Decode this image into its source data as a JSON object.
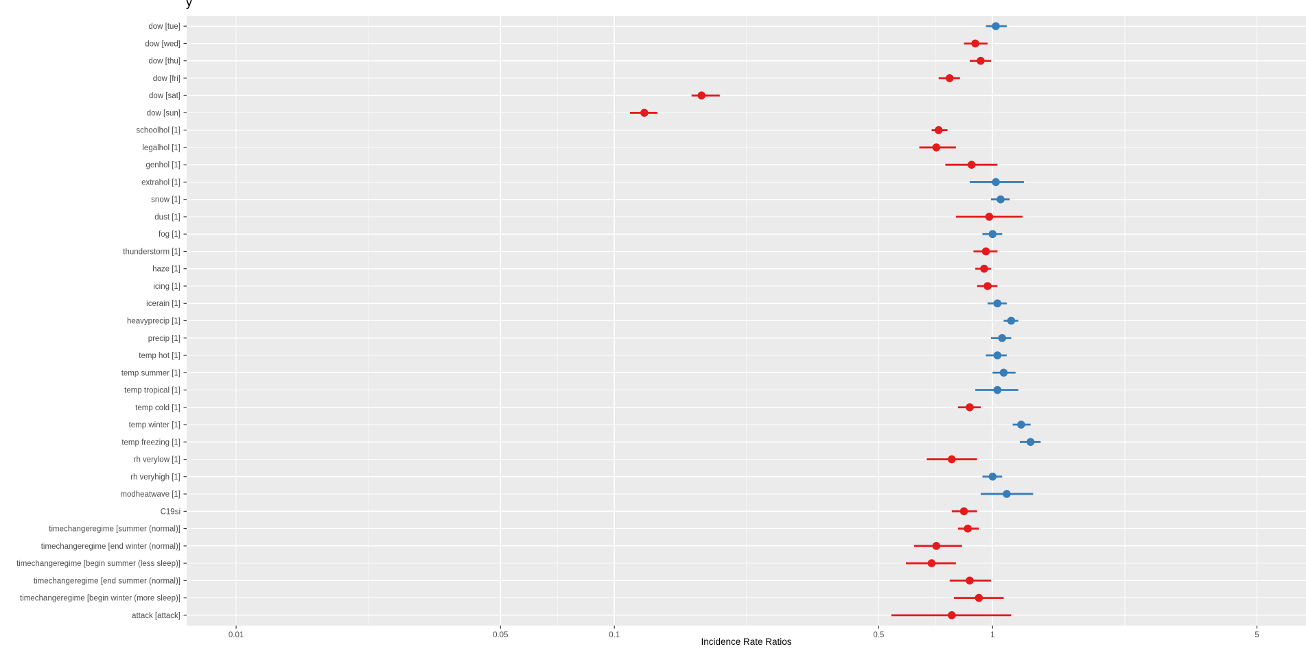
{
  "title": "y",
  "axis": {
    "x_label": "Incidence Rate Ratios",
    "y_label": ""
  },
  "colors": {
    "blue": "#377EB8",
    "red": "#E41A1C",
    "panel_background": "#EBEBEB",
    "gridline": "#FFFFFF",
    "axis_text": "#4D4D4D",
    "tick_mark": "#333333",
    "title_text": "#000000"
  },
  "chart_data": {
    "type": "scatter",
    "subtype": "forest-plot (point estimate with confidence interval)",
    "title": "y",
    "xlabel": "Incidence Rate Ratios",
    "ylabel": "",
    "legend": "none",
    "grid": "white major/minor gridlines on grey panel",
    "x_scale": "log10",
    "xlim": [
      0.0074,
      6.74
    ],
    "x_ticks": [
      0.01,
      0.05,
      0.1,
      0.5,
      1,
      5
    ],
    "x_tick_labels": [
      "0.01",
      "0.05",
      "0.1",
      "0.5",
      "1",
      "5"
    ],
    "x_minor_gridlines": [
      0.02236,
      0.07071,
      0.22361,
      0.70711,
      2.23607
    ],
    "point_color_rule": {
      "irr_ge_1": "blue",
      "irr_lt_1": "red"
    },
    "points": [
      {
        "label": "dow [tue]",
        "irr": 1.02,
        "ci": [
          0.96,
          1.09
        ],
        "color": "blue"
      },
      {
        "label": "dow [wed]",
        "irr": 0.9,
        "ci": [
          0.84,
          0.97
        ],
        "color": "red"
      },
      {
        "label": "dow [thu]",
        "irr": 0.93,
        "ci": [
          0.87,
          0.99
        ],
        "color": "red"
      },
      {
        "label": "dow [fri]",
        "irr": 0.77,
        "ci": [
          0.72,
          0.82
        ],
        "color": "red"
      },
      {
        "label": "dow [sat]",
        "irr": 0.17,
        "ci": [
          0.16,
          0.19
        ],
        "color": "red"
      },
      {
        "label": "dow [sun]",
        "irr": 0.12,
        "ci": [
          0.11,
          0.13
        ],
        "color": "red"
      },
      {
        "label": "schoolhol [1]",
        "irr": 0.72,
        "ci": [
          0.69,
          0.76
        ],
        "color": "red"
      },
      {
        "label": "legalhol [1]",
        "irr": 0.71,
        "ci": [
          0.64,
          0.8
        ],
        "color": "red"
      },
      {
        "label": "genhol [1]",
        "irr": 0.88,
        "ci": [
          0.75,
          1.03
        ],
        "color": "red"
      },
      {
        "label": "extrahol [1]",
        "irr": 1.02,
        "ci": [
          0.87,
          1.21
        ],
        "color": "blue"
      },
      {
        "label": "snow [1]",
        "irr": 1.05,
        "ci": [
          0.99,
          1.11
        ],
        "color": "blue"
      },
      {
        "label": "dust [1]",
        "irr": 0.98,
        "ci": [
          0.8,
          1.2
        ],
        "color": "red"
      },
      {
        "label": "fog [1]",
        "irr": 1.0,
        "ci": [
          0.94,
          1.06
        ],
        "color": "blue"
      },
      {
        "label": "thunderstorm [1]",
        "irr": 0.96,
        "ci": [
          0.89,
          1.03
        ],
        "color": "red"
      },
      {
        "label": "haze [1]",
        "irr": 0.95,
        "ci": [
          0.9,
          0.99
        ],
        "color": "red"
      },
      {
        "label": "icing [1]",
        "irr": 0.97,
        "ci": [
          0.91,
          1.03
        ],
        "color": "red"
      },
      {
        "label": "icerain [1]",
        "irr": 1.03,
        "ci": [
          0.97,
          1.09
        ],
        "color": "blue"
      },
      {
        "label": "heavyprecip [1]",
        "irr": 1.12,
        "ci": [
          1.07,
          1.17
        ],
        "color": "blue"
      },
      {
        "label": "precip [1]",
        "irr": 1.06,
        "ci": [
          0.99,
          1.12
        ],
        "color": "blue"
      },
      {
        "label": "temp hot [1]",
        "irr": 1.03,
        "ci": [
          0.96,
          1.09
        ],
        "color": "blue"
      },
      {
        "label": "temp summer [1]",
        "irr": 1.07,
        "ci": [
          1.0,
          1.15
        ],
        "color": "blue"
      },
      {
        "label": "temp tropical [1]",
        "irr": 1.03,
        "ci": [
          0.9,
          1.17
        ],
        "color": "blue"
      },
      {
        "label": "temp cold [1]",
        "irr": 0.87,
        "ci": [
          0.81,
          0.93
        ],
        "color": "red"
      },
      {
        "label": "temp winter [1]",
        "irr": 1.19,
        "ci": [
          1.13,
          1.26
        ],
        "color": "blue"
      },
      {
        "label": "temp freezing [1]",
        "irr": 1.26,
        "ci": [
          1.18,
          1.34
        ],
        "color": "blue"
      },
      {
        "label": "rh verylow [1]",
        "irr": 0.78,
        "ci": [
          0.67,
          0.91
        ],
        "color": "red"
      },
      {
        "label": "rh veryhigh [1]",
        "irr": 1.0,
        "ci": [
          0.94,
          1.06
        ],
        "color": "blue"
      },
      {
        "label": "modheatwave [1]",
        "irr": 1.09,
        "ci": [
          0.93,
          1.28
        ],
        "color": "blue"
      },
      {
        "label": "C19si",
        "irr": 0.84,
        "ci": [
          0.78,
          0.91
        ],
        "color": "red"
      },
      {
        "label": "timechangeregime [summer (normal)]",
        "irr": 0.86,
        "ci": [
          0.81,
          0.92
        ],
        "color": "red"
      },
      {
        "label": "timechangeregime [end winter (normal)]",
        "irr": 0.71,
        "ci": [
          0.62,
          0.83
        ],
        "color": "red"
      },
      {
        "label": "timechangeregime [begin summer (less sleep)]",
        "irr": 0.69,
        "ci": [
          0.59,
          0.8
        ],
        "color": "red"
      },
      {
        "label": "timechangeregime [end summer (normal)]",
        "irr": 0.87,
        "ci": [
          0.77,
          0.99
        ],
        "color": "red"
      },
      {
        "label": "timechangeregime [begin winter (more sleep)]",
        "irr": 0.92,
        "ci": [
          0.79,
          1.07
        ],
        "color": "red"
      },
      {
        "label": "attack [attack]",
        "irr": 0.78,
        "ci": [
          0.54,
          1.12
        ],
        "color": "red"
      }
    ]
  }
}
